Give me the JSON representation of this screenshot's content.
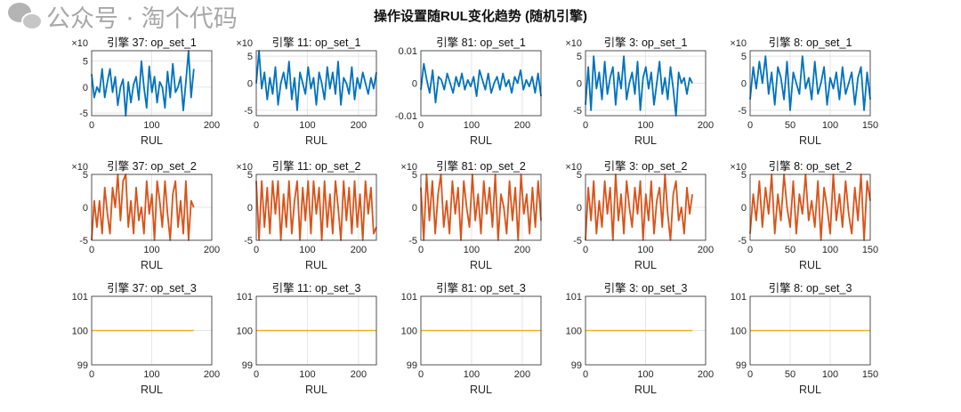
{
  "figure": {
    "title": "操作设置随RUL变化趋势 (随机引擎)"
  },
  "watermark": {
    "text": "公众号 · 淘个代码",
    "icon": "wechat-icon"
  },
  "colors": {
    "op_set_1": "#0072BD",
    "op_set_2": "#D95319",
    "op_set_3": "#EDB120",
    "grid": "#e5e5e5",
    "axis": "#262626"
  },
  "chart_data": [
    {
      "type": "line",
      "title": "引擎 37: op_set_1",
      "xlabel": "RUL",
      "exponent_label": "×10",
      "xlim": [
        0,
        200
      ],
      "xticks": [
        0,
        100,
        200
      ],
      "ylim": [
        -5.5,
        7
      ],
      "yticks": [
        -5,
        0,
        5
      ],
      "grid": true,
      "x_end": 170,
      "values": [
        2.5,
        -2,
        0,
        -1,
        3.5,
        -2,
        1,
        3.5,
        -1,
        2,
        -3.5,
        0,
        1.5,
        -5.5,
        1,
        -3,
        0.5,
        2,
        -2.5,
        5,
        0,
        -4,
        4,
        -1,
        2,
        -3,
        1,
        0,
        -4,
        3,
        -2,
        4.5,
        -1,
        0,
        2,
        -4.5,
        1,
        7,
        -2,
        3.5
      ]
    },
    {
      "type": "line",
      "title": "引擎 11: op_set_1",
      "xlabel": "RUL",
      "exponent_label": "×10",
      "xlim": [
        0,
        235
      ],
      "xticks": [
        0,
        100,
        200
      ],
      "ylim": [
        -6,
        6
      ],
      "yticks": [
        -5,
        0,
        5
      ],
      "grid": true,
      "x_end": 235,
      "values": [
        0,
        6,
        -1,
        2,
        -3,
        1,
        -2,
        3,
        -4,
        0,
        2,
        -1,
        4,
        -3,
        1,
        -5,
        2,
        0,
        -2,
        3,
        -1,
        1,
        -4,
        2,
        0,
        -3,
        3,
        -1,
        2,
        -2,
        4,
        -4,
        1,
        0,
        -2,
        3,
        -3,
        1,
        -1,
        2,
        0,
        -2,
        1,
        -1,
        2
      ]
    },
    {
      "type": "line",
      "title": "引擎 81: op_set_1",
      "xlabel": "RUL",
      "exponent_label": "",
      "xlim": [
        0,
        237
      ],
      "xticks": [
        0,
        100,
        200
      ],
      "ylim": [
        -0.01,
        0.01
      ],
      "yticks": [
        -0.01,
        0,
        0.01
      ],
      "grid": true,
      "x_end": 237,
      "values": [
        -0.002,
        0.006,
        0.001,
        -0.003,
        0.004,
        -0.006,
        0.002,
        0.001,
        -0.002,
        0.003,
        0,
        -0.003,
        0.002,
        -0.001,
        0.003,
        -0.002,
        0.001,
        -0.001,
        0.002,
        -0.004,
        0.004,
        0.001,
        -0.002,
        0.003,
        -0.003,
        0,
        0.002,
        -0.002,
        0.003,
        -0.001,
        0.001,
        -0.003,
        0.002,
        0,
        0.004,
        -0.002,
        0.001,
        -0.001,
        0.002,
        -0.003,
        0.003,
        -0.004
      ]
    },
    {
      "type": "line",
      "title": "引擎 3: op_set_1",
      "xlabel": "RUL",
      "exponent_label": "×10",
      "xlim": [
        0,
        200
      ],
      "xticks": [
        0,
        100,
        200
      ],
      "ylim": [
        -6,
        6
      ],
      "yticks": [
        -5,
        0,
        5
      ],
      "grid": true,
      "x_end": 178,
      "values": [
        -4,
        3,
        -5,
        5,
        -1,
        2,
        -3,
        4,
        -2,
        1,
        3,
        -4,
        2,
        -1,
        5,
        -3,
        0,
        2,
        -2,
        4,
        -5,
        1,
        3,
        -1,
        2,
        -4,
        0,
        4,
        -2,
        1,
        -3,
        3,
        -1,
        -6,
        2,
        0,
        1,
        -2,
        1,
        0
      ]
    },
    {
      "type": "line",
      "title": "引擎 8: op_set_1",
      "xlabel": "RUL",
      "exponent_label": "×10",
      "xlim": [
        0,
        150
      ],
      "xticks": [
        0,
        50,
        100,
        150
      ],
      "ylim": [
        -6,
        6
      ],
      "yticks": [
        -5,
        0,
        5
      ],
      "grid": true,
      "x_end": 150,
      "values": [
        -3,
        3,
        -1,
        4,
        0,
        5,
        -2,
        2,
        -4,
        3,
        1,
        -3,
        4,
        -5,
        2,
        0,
        -2,
        5,
        -1,
        1,
        -3,
        4,
        -2,
        0,
        3,
        -4,
        1,
        -1,
        2,
        -3,
        3,
        -2,
        0,
        2,
        -4,
        1,
        3,
        -5,
        2,
        -3
      ]
    },
    {
      "type": "line",
      "title": "引擎 37: op_set_2",
      "xlabel": "RUL",
      "exponent_label": "×10",
      "xlim": [
        0,
        200
      ],
      "xticks": [
        0,
        100,
        200
      ],
      "ylim": [
        -5,
        5
      ],
      "yticks": [
        -5,
        0,
        5
      ],
      "grid": true,
      "x_end": 170,
      "values": [
        -5,
        1,
        -3,
        1,
        -4,
        3,
        -1,
        -4,
        3,
        0,
        5,
        -2,
        4,
        5,
        -3,
        1,
        -4,
        3,
        -2,
        0,
        -4,
        4,
        -1,
        2,
        -5,
        4,
        1,
        -3,
        4,
        -1,
        -5,
        2,
        4,
        -3,
        1,
        -4,
        4,
        -5,
        1,
        0
      ]
    },
    {
      "type": "line",
      "title": "引擎 11: op_set_2",
      "xlabel": "RUL",
      "exponent_label": "×10",
      "xlim": [
        0,
        235
      ],
      "xticks": [
        0,
        100,
        200
      ],
      "ylim": [
        -5,
        5
      ],
      "yticks": [
        -5,
        0,
        5
      ],
      "grid": true,
      "x_end": 235,
      "values": [
        4,
        -5,
        4,
        -3,
        3,
        -4,
        4,
        -1,
        4,
        -5,
        2,
        -3,
        4,
        -4,
        1,
        4,
        -5,
        3,
        -2,
        4,
        -4,
        4,
        -1,
        3,
        -5,
        4,
        -3,
        2,
        -4,
        4,
        0,
        -5,
        4,
        -2,
        3,
        -4,
        4,
        -3,
        2,
        -5,
        4,
        -1,
        3,
        -4,
        -3
      ]
    },
    {
      "type": "line",
      "title": "引擎 81: op_set_2",
      "xlabel": "RUL",
      "exponent_label": "×10",
      "xlim": [
        0,
        237
      ],
      "xticks": [
        0,
        100,
        200
      ],
      "ylim": [
        -5,
        5
      ],
      "yticks": [
        -5,
        0,
        5
      ],
      "grid": true,
      "x_end": 237,
      "values": [
        3,
        -5,
        5,
        -2,
        4,
        -4,
        2,
        5,
        -3,
        1,
        -4,
        4,
        -1,
        3,
        -5,
        4,
        0,
        -3,
        5,
        -2,
        2,
        -4,
        4,
        -1,
        3,
        -3,
        5,
        -5,
        2,
        0,
        -4,
        4,
        -2,
        3,
        -5,
        5,
        -1,
        2,
        -4,
        3,
        -3,
        4,
        -2
      ]
    },
    {
      "type": "line",
      "title": "引擎 3: op_set_2",
      "xlabel": "RUL",
      "exponent_label": "×10",
      "xlim": [
        0,
        200
      ],
      "xticks": [
        0,
        100,
        200
      ],
      "ylim": [
        -5,
        5
      ],
      "yticks": [
        -5,
        0,
        5
      ],
      "grid": true,
      "x_end": 178,
      "values": [
        -5,
        3,
        -2,
        4,
        -4,
        1,
        -3,
        4,
        -1,
        3,
        -5,
        5,
        -2,
        2,
        -4,
        4,
        0,
        -3,
        3,
        -1,
        4,
        -5,
        2,
        -2,
        4,
        -4,
        1,
        3,
        -3,
        5,
        -1,
        -5,
        2,
        4,
        -2,
        0,
        -4,
        3,
        -1,
        2
      ]
    },
    {
      "type": "line",
      "title": "引擎 8: op_set_2",
      "xlabel": "RUL",
      "exponent_label": "×10",
      "xlim": [
        0,
        150
      ],
      "xticks": [
        0,
        50,
        100,
        150
      ],
      "ylim": [
        -5,
        5
      ],
      "yticks": [
        -5,
        0,
        5
      ],
      "grid": true,
      "x_end": 150,
      "values": [
        -4,
        2,
        -2,
        4,
        -3,
        3,
        -1,
        5,
        -4,
        2,
        -2,
        5,
        0,
        -3,
        4,
        -4,
        2,
        -1,
        5,
        -2,
        1,
        -3,
        4,
        -5,
        3,
        0,
        -4,
        5,
        -2,
        2,
        -3,
        4,
        -1,
        -4,
        3,
        -2,
        5,
        -5,
        4,
        1
      ]
    },
    {
      "type": "line",
      "title": "引擎 37: op_set_3",
      "xlabel": "RUL",
      "exponent_label": "",
      "xlim": [
        0,
        200
      ],
      "xticks": [
        0,
        100,
        200
      ],
      "ylim": [
        99,
        101
      ],
      "yticks": [
        99,
        100,
        101
      ],
      "grid": true,
      "x_end": 170,
      "values": [
        100,
        100
      ]
    },
    {
      "type": "line",
      "title": "引擎 11: op_set_3",
      "xlabel": "RUL",
      "exponent_label": "",
      "xlim": [
        0,
        235
      ],
      "xticks": [
        0,
        100,
        200
      ],
      "ylim": [
        99,
        101
      ],
      "yticks": [
        99,
        100,
        101
      ],
      "grid": true,
      "x_end": 235,
      "values": [
        100,
        100
      ]
    },
    {
      "type": "line",
      "title": "引擎 81: op_set_3",
      "xlabel": "RUL",
      "exponent_label": "",
      "xlim": [
        0,
        237
      ],
      "xticks": [
        0,
        100,
        200
      ],
      "ylim": [
        99,
        101
      ],
      "yticks": [
        99,
        100,
        101
      ],
      "grid": true,
      "x_end": 237,
      "values": [
        100,
        100
      ]
    },
    {
      "type": "line",
      "title": "引擎 3: op_set_3",
      "xlabel": "RUL",
      "exponent_label": "",
      "xlim": [
        0,
        200
      ],
      "xticks": [
        0,
        100,
        200
      ],
      "ylim": [
        99,
        101
      ],
      "yticks": [
        99,
        100,
        101
      ],
      "grid": true,
      "x_end": 178,
      "values": [
        100,
        100
      ]
    },
    {
      "type": "line",
      "title": "引擎 8: op_set_3",
      "xlabel": "RUL",
      "exponent_label": "",
      "xlim": [
        0,
        150
      ],
      "xticks": [
        0,
        50,
        100,
        150
      ],
      "ylim": [
        99,
        101
      ],
      "yticks": [
        99,
        100,
        101
      ],
      "grid": true,
      "x_end": 150,
      "values": [
        100,
        100
      ]
    }
  ]
}
